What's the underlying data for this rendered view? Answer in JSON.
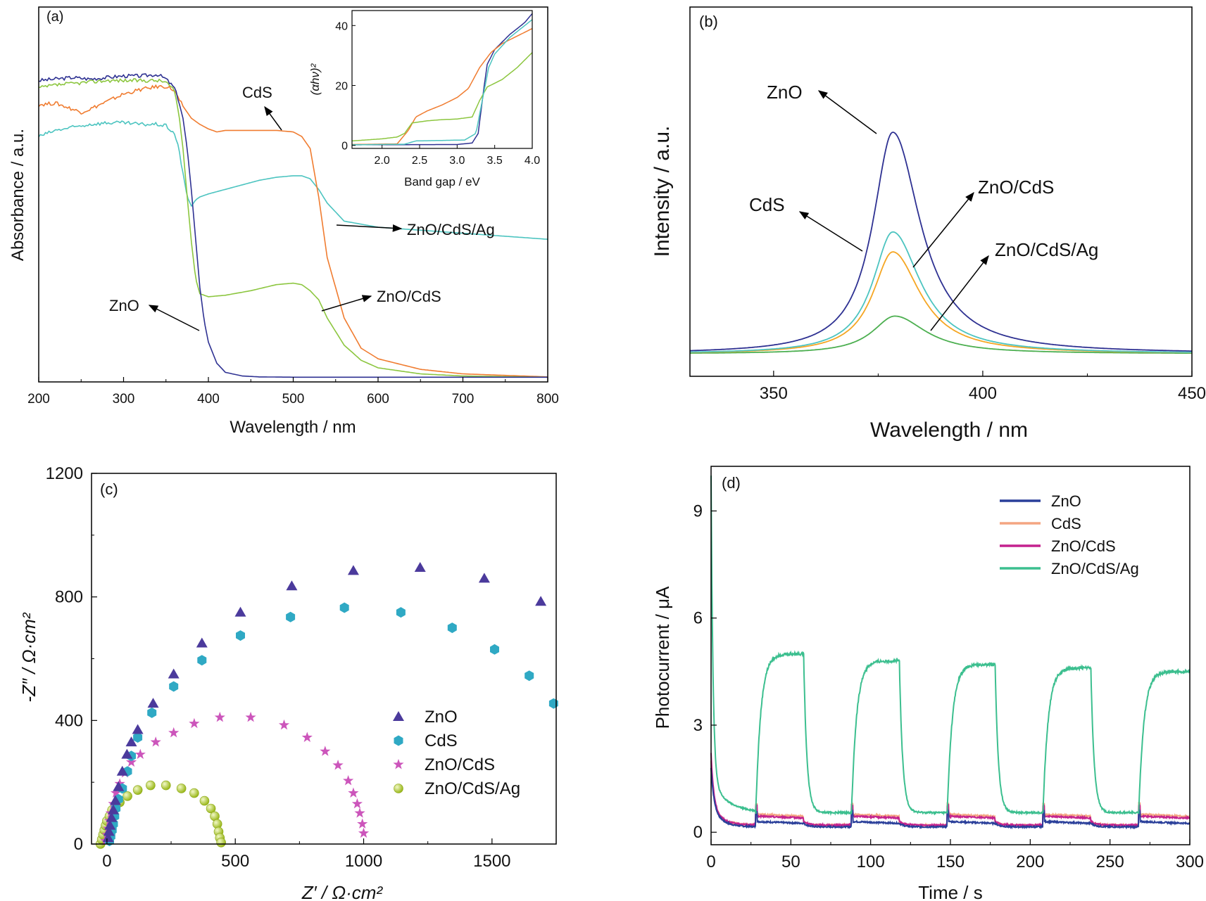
{
  "chart_data": [
    {
      "panel": "(a)",
      "type": "line",
      "xlabel": "Wavelength / nm",
      "ylabel": "Absorbance / a.u.",
      "xlim": [
        200,
        800
      ],
      "ylim": [
        0,
        1
      ],
      "xticks": [
        "200",
        "300",
        "400",
        "500",
        "600",
        "700",
        "800"
      ],
      "series": [
        {
          "name": "ZnO",
          "color": "#2e3192",
          "x": [
            200,
            220,
            240,
            260,
            280,
            300,
            320,
            340,
            350,
            360,
            365,
            370,
            375,
            380,
            385,
            390,
            395,
            400,
            410,
            420,
            440,
            460,
            500,
            600,
            700,
            800
          ],
          "y": [
            0.985,
            0.99,
            0.995,
            0.99,
            0.995,
            1.0,
            1.0,
            1.005,
            0.99,
            0.96,
            0.92,
            0.86,
            0.76,
            0.62,
            0.46,
            0.3,
            0.19,
            0.12,
            0.05,
            0.02,
            0.008,
            0.005,
            0.004,
            0.004,
            0.004,
            0.004
          ]
        },
        {
          "name": "CdS",
          "color": "#f07c30",
          "x": [
            200,
            220,
            240,
            250,
            260,
            280,
            300,
            320,
            340,
            350,
            355,
            360,
            370,
            380,
            390,
            400,
            410,
            420,
            440,
            460,
            480,
            500,
            510,
            520,
            530,
            540,
            560,
            580,
            600,
            650,
            700,
            800
          ],
          "y": [
            0.905,
            0.91,
            0.89,
            0.88,
            0.89,
            0.915,
            0.94,
            0.955,
            0.965,
            0.965,
            0.96,
            0.95,
            0.9,
            0.86,
            0.84,
            0.825,
            0.815,
            0.82,
            0.82,
            0.82,
            0.82,
            0.815,
            0.8,
            0.76,
            0.6,
            0.4,
            0.2,
            0.1,
            0.065,
            0.03,
            0.015,
            0.005
          ]
        },
        {
          "name": "ZnO/CdS",
          "color": "#8cc63f",
          "x": [
            200,
            220,
            240,
            260,
            280,
            300,
            320,
            340,
            350,
            360,
            365,
            370,
            375,
            380,
            385,
            390,
            400,
            420,
            450,
            480,
            500,
            510,
            520,
            530,
            540,
            560,
            580,
            600,
            650,
            700,
            800
          ],
          "y": [
            0.96,
            0.97,
            0.975,
            0.98,
            0.985,
            0.985,
            0.985,
            0.985,
            0.98,
            0.95,
            0.88,
            0.76,
            0.6,
            0.45,
            0.33,
            0.28,
            0.27,
            0.275,
            0.29,
            0.31,
            0.315,
            0.31,
            0.29,
            0.26,
            0.2,
            0.11,
            0.06,
            0.035,
            0.015,
            0.008,
            0.004
          ]
        },
        {
          "name": "ZnO/CdS/Ag",
          "color": "#4cc4c0",
          "x": [
            200,
            220,
            240,
            260,
            280,
            300,
            320,
            340,
            350,
            360,
            365,
            370,
            375,
            380,
            385,
            390,
            400,
            420,
            440,
            460,
            480,
            500,
            510,
            520,
            530,
            540,
            560,
            600,
            650,
            700,
            800
          ],
          "y": [
            0.8,
            0.82,
            0.83,
            0.84,
            0.845,
            0.845,
            0.84,
            0.84,
            0.835,
            0.81,
            0.76,
            0.68,
            0.6,
            0.57,
            0.59,
            0.6,
            0.61,
            0.625,
            0.64,
            0.655,
            0.665,
            0.67,
            0.67,
            0.66,
            0.625,
            0.58,
            0.52,
            0.5,
            0.49,
            0.48,
            0.46
          ]
        }
      ],
      "annotations": [
        "CdS",
        "ZnO/CdS/Ag",
        "ZnO/CdS",
        "ZnO"
      ],
      "inset": {
        "xlabel": "Band gap / eV",
        "ylabel": "(αhν)²",
        "xlim": [
          1.6,
          4.0
        ],
        "ylim": [
          -1,
          45
        ],
        "xticks": [
          "2.0",
          "2.5",
          "3.0",
          "3.5",
          "4.0"
        ],
        "yticks": [
          "0",
          "20",
          "40"
        ],
        "series": [
          {
            "name": "ZnO",
            "color": "#2e3192",
            "x": [
              1.6,
              3.0,
              3.2,
              3.28,
              3.35,
              3.4,
              3.5,
              3.7,
              3.9,
              4.0
            ],
            "y": [
              0.2,
              0.3,
              0.8,
              4,
              18,
              27,
              32,
              37,
              41,
              44
            ]
          },
          {
            "name": "CdS",
            "color": "#f07c30",
            "x": [
              1.6,
              2.2,
              2.35,
              2.45,
              2.6,
              2.8,
              3.0,
              3.15,
              3.3,
              3.45,
              3.6,
              3.8,
              4.0
            ],
            "y": [
              0.3,
              0.5,
              5,
              9.5,
              11.5,
              13.5,
              16,
              19,
              26,
              31,
              34,
              36.5,
              39
            ]
          },
          {
            "name": "ZnO/CdS",
            "color": "#8cc63f",
            "x": [
              1.6,
              2.0,
              2.2,
              2.3,
              2.4,
              2.6,
              2.8,
              3.0,
              3.2,
              3.3,
              3.4,
              3.6,
              3.8,
              4.0
            ],
            "y": [
              1.5,
              2.2,
              2.8,
              4,
              7.5,
              8.2,
              8.6,
              8.8,
              9.5,
              15,
              19.5,
              22,
              26,
              31
            ]
          },
          {
            "name": "ZnO/CdS/Ag",
            "color": "#4cc4c0",
            "x": [
              1.6,
              2.3,
              2.45,
              3.1,
              3.25,
              3.35,
              3.42,
              3.5,
              3.7,
              3.9,
              4.0
            ],
            "y": [
              0.2,
              0.4,
              1.5,
              1.8,
              4,
              17,
              26,
              30.5,
              36,
              40,
              42
            ]
          }
        ]
      }
    },
    {
      "panel": "(b)",
      "type": "line",
      "xlabel": "Wavelength / nm",
      "ylabel": "Intensity / a.u.",
      "xlim": [
        330,
        450
      ],
      "ylim": [
        -0.1,
        1.25
      ],
      "xticks": [
        "350",
        "400",
        "450"
      ],
      "series": [
        {
          "name": "ZnO",
          "color": "#2e3192",
          "peak": 1.0,
          "center": 378.5,
          "width": 8
        },
        {
          "name": "CdS",
          "color": "#4cc4c0",
          "peak": 0.55,
          "center": 378.5,
          "width": 8
        },
        {
          "name": "ZnO/CdS",
          "color": "#f5a623",
          "peak": 0.46,
          "center": 378.5,
          "width": 8
        },
        {
          "name": "ZnO/CdS/Ag",
          "color": "#4caf50",
          "peak": 0.17,
          "center": 379,
          "width": 9
        }
      ],
      "annotations": [
        "ZnO",
        "CdS",
        "ZnO/CdS",
        "ZnO/CdS/Ag"
      ]
    },
    {
      "panel": "(c)",
      "type": "scatter",
      "xlabel": "Z′ / Ω·cm²",
      "ylabel": "-Z″ / Ω·cm²",
      "xlim": [
        -60,
        1750
      ],
      "ylim": [
        0,
        1200
      ],
      "xticks": [
        "0",
        "500",
        "1000",
        "1500"
      ],
      "yticks": [
        "0",
        "400",
        "800",
        "1200"
      ],
      "series": [
        {
          "name": "ZnO",
          "color": "#4b3a9c",
          "marker": "triangle",
          "x": [
            5,
            8,
            12,
            18,
            25,
            33,
            45,
            60,
            78,
            95,
            120,
            180,
            260,
            370,
            520,
            720,
            960,
            1220,
            1470,
            1690
          ],
          "y": [
            20,
            40,
            60,
            85,
            110,
            140,
            185,
            235,
            290,
            330,
            370,
            455,
            550,
            650,
            750,
            835,
            885,
            895,
            860,
            785
          ]
        },
        {
          "name": "CdS",
          "color": "#2fa9c4",
          "marker": "hexagon",
          "x": [
            10,
            15,
            20,
            25,
            30,
            35,
            45,
            60,
            80,
            95,
            120,
            175,
            260,
            370,
            520,
            715,
            925,
            1145,
            1345,
            1510,
            1645,
            1740
          ],
          "y": [
            10,
            25,
            45,
            65,
            90,
            115,
            145,
            180,
            235,
            285,
            345,
            425,
            510,
            595,
            675,
            735,
            765,
            750,
            700,
            630,
            545,
            455
          ]
        },
        {
          "name": "ZnO/CdS",
          "color": "#cc55bb",
          "marker": "star",
          "x": [
            -5,
            0,
            5,
            10,
            15,
            25,
            35,
            50,
            70,
            95,
            130,
            190,
            260,
            340,
            440,
            560,
            690,
            780,
            850,
            900,
            940,
            960,
            975,
            985,
            995,
            1000
          ],
          "y": [
            10,
            30,
            50,
            75,
            100,
            130,
            165,
            195,
            230,
            265,
            290,
            330,
            360,
            390,
            410,
            410,
            385,
            345,
            300,
            255,
            205,
            165,
            130,
            100,
            65,
            35
          ]
        },
        {
          "name": "ZnO/CdS/Ag",
          "color": "#a7c72a",
          "marker": "sphere",
          "x": [
            -25,
            -20,
            -15,
            -10,
            -5,
            0,
            10,
            20,
            35,
            50,
            80,
            120,
            170,
            230,
            290,
            340,
            380,
            405,
            420,
            430,
            435,
            440,
            445
          ],
          "y": [
            0,
            15,
            30,
            45,
            60,
            75,
            90,
            110,
            125,
            135,
            155,
            175,
            190,
            190,
            180,
            165,
            140,
            115,
            90,
            65,
            40,
            20,
            5
          ]
        }
      ],
      "legend": [
        "ZnO",
        "CdS",
        "ZnO/CdS",
        "ZnO/CdS/Ag"
      ]
    },
    {
      "panel": "(d)",
      "type": "line",
      "xlabel": "Time / s",
      "ylabel": "Photocurrent / μA",
      "xlim": [
        0,
        300
      ],
      "ylim": [
        -0.35,
        10.25
      ],
      "xticks": [
        "0",
        "50",
        "100",
        "150",
        "200",
        "250",
        "300"
      ],
      "yticks": [
        "0",
        "3",
        "6",
        "9"
      ],
      "light_on_s": [
        28,
        88,
        148,
        208,
        268
      ],
      "light_off_s": [
        58,
        118,
        178,
        238
      ],
      "series": [
        {
          "name": "ZnO",
          "color": "#2a3f9a",
          "initial": 1.8,
          "dark": 0.15,
          "light": 0.3
        },
        {
          "name": "CdS",
          "color": "#f4a582",
          "initial": 2.0,
          "dark": 0.2,
          "light": 0.5
        },
        {
          "name": "ZnO/CdS",
          "color": "#c4228e",
          "initial": 2.2,
          "dark": 0.2,
          "light": 0.45
        },
        {
          "name": "ZnO/CdS/Ag",
          "color": "#3cbf8f",
          "initial": 10.0,
          "dark": 0.55,
          "light": [
            5.0,
            4.8,
            4.7,
            4.6,
            4.5
          ]
        }
      ],
      "legend": [
        "ZnO",
        "CdS",
        "ZnO/CdS",
        "ZnO/CdS/Ag"
      ]
    }
  ]
}
